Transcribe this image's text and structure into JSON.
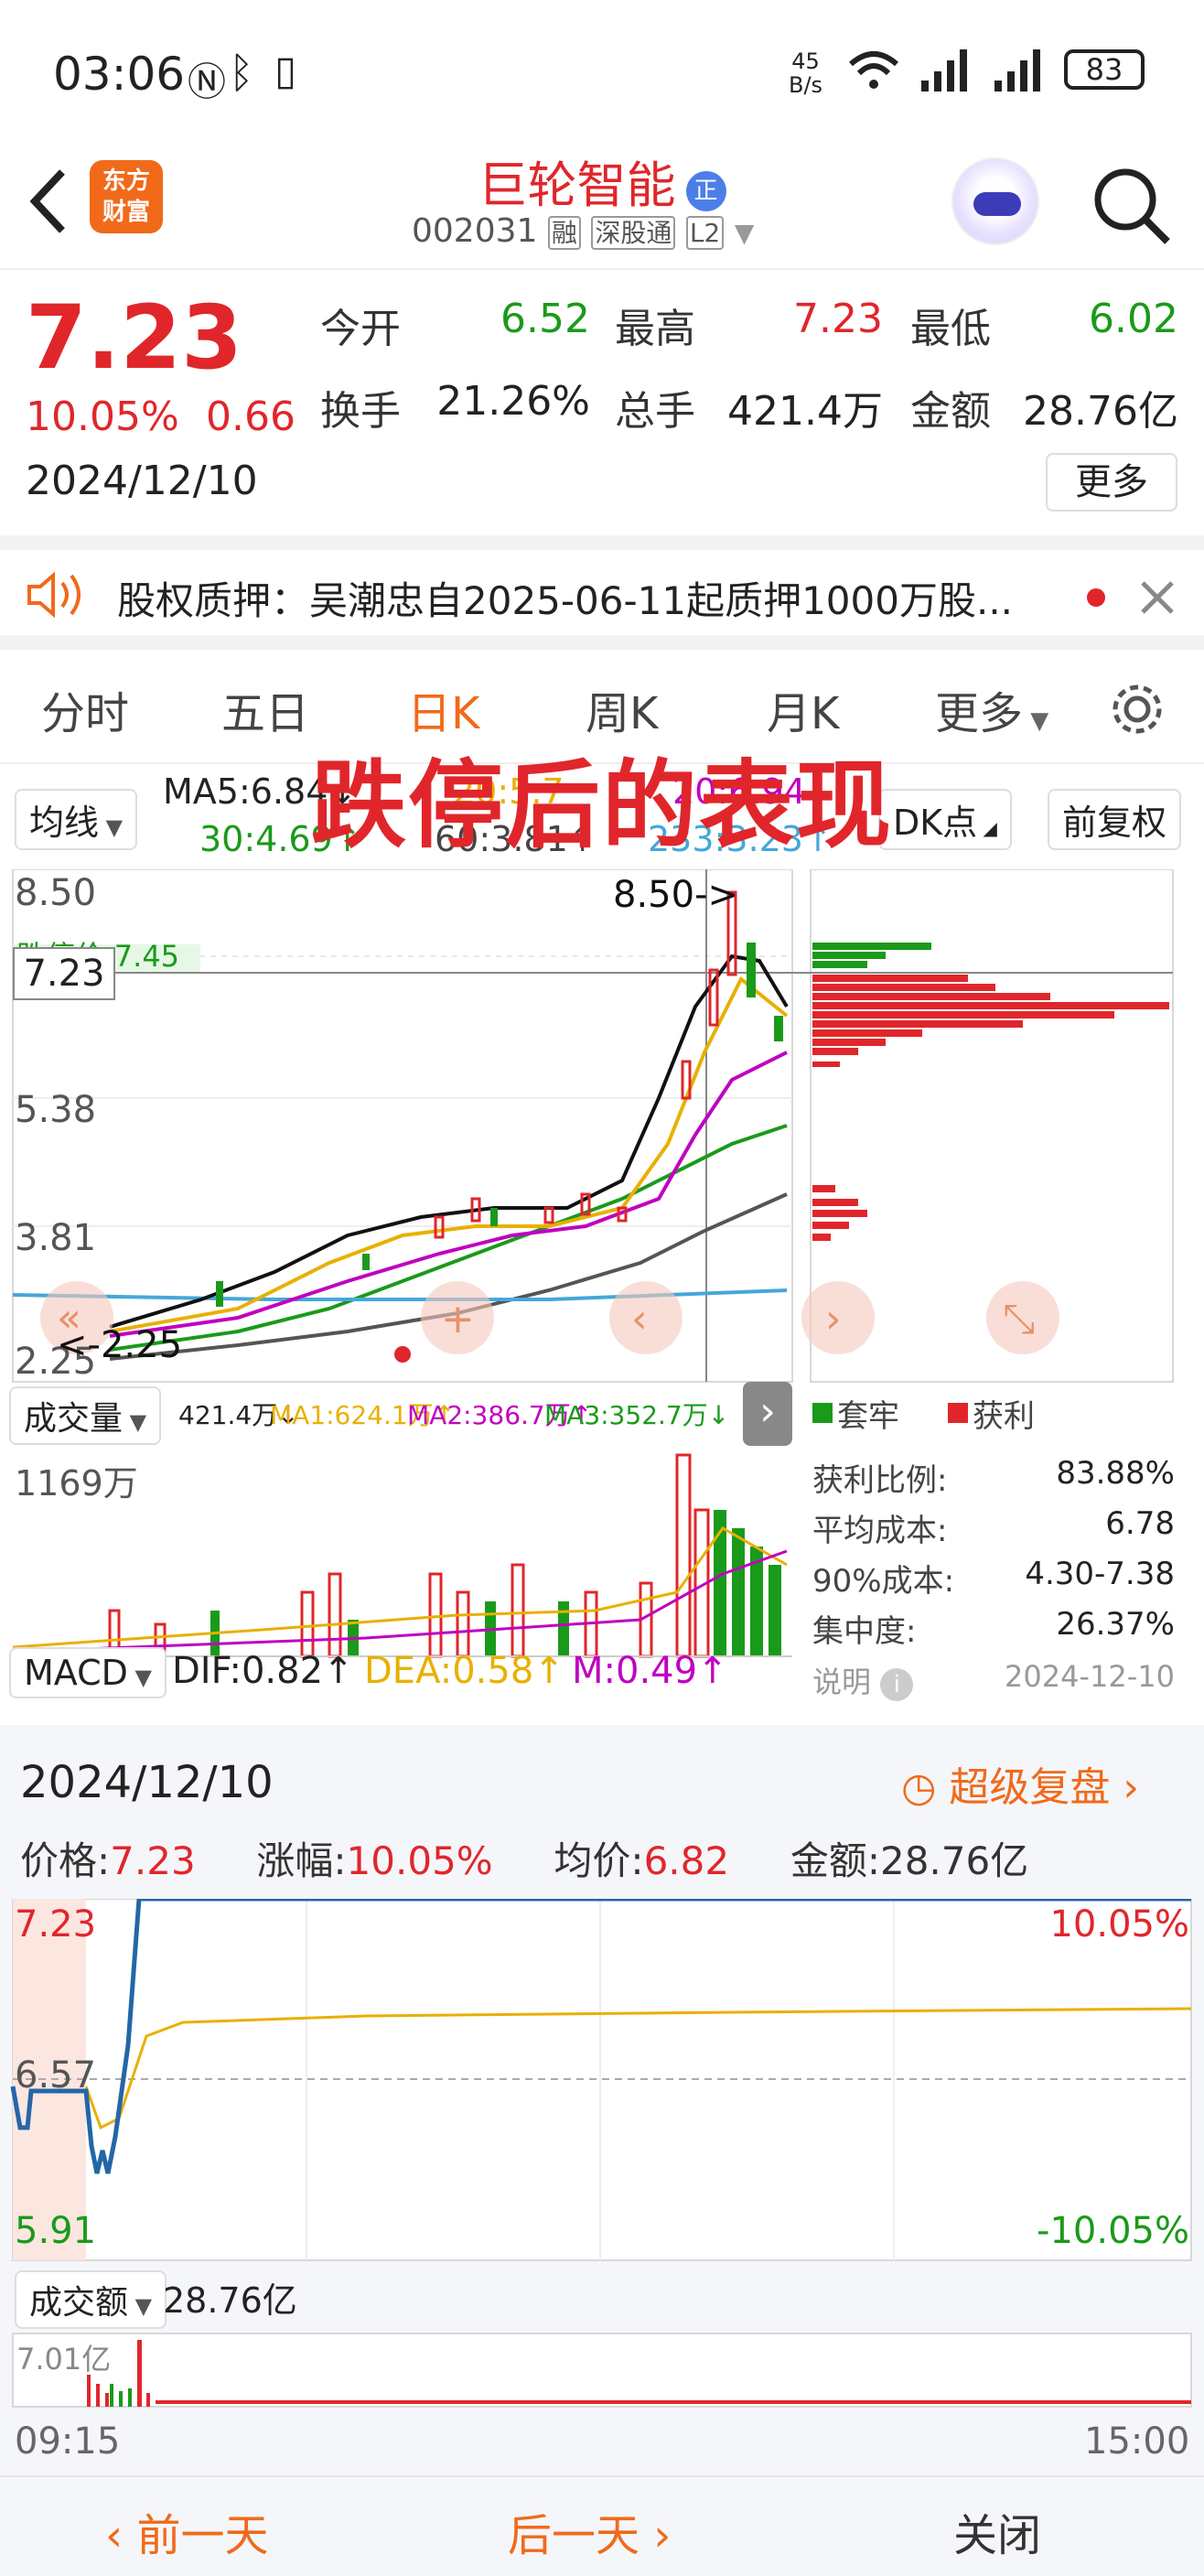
{
  "status_bar": {
    "time": "03:06",
    "speed": "45\nB/s",
    "battery": "83"
  },
  "header": {
    "brand": "东方\n财富",
    "title": "巨轮智能",
    "badge": "正",
    "code": "002031",
    "tags": [
      "融",
      "深股通",
      "L2"
    ]
  },
  "quote": {
    "price": "7.23",
    "change_pct": "10.05%",
    "change": "0.66",
    "date": "2024/12/10",
    "open_label": "今开",
    "open": "6.52",
    "high_label": "最高",
    "high": "7.23",
    "low_label": "最低",
    "low": "6.02",
    "turnover_label": "换手",
    "turnover": "21.26%",
    "vol_label": "总手",
    "vol": "421.4万",
    "amount_label": "金额",
    "amount": "28.76亿",
    "more": "更多"
  },
  "notice": {
    "text": "股权质押：吴潮忠自2025-06-11起质押1000万股..."
  },
  "tabs": [
    "分时",
    "五日",
    "日K",
    "周K",
    "月K",
    "更多"
  ],
  "kline": {
    "overlay_title": "跌停后的表现",
    "ma_select": "均线",
    "ma5": "MA5:6.84↓",
    "ma30": "30:4.69↑",
    "ma60": "60:3.81↑",
    "ma233": "233:3.23↑",
    "ma_mid": "20:5.7",
    "ma_right": "20:6.94",
    "dk": "DK点",
    "fq": "前复权",
    "y_top": "8.50",
    "y_mid1": "5.38",
    "y_mid2": "3.81",
    "y_bot": "2.25",
    "cursor_price": "7.23",
    "limit_label": "跌停价:7.45",
    "peak": "8.50->",
    "low_mark": "<-2.25",
    "vol_select": "成交量",
    "vol_now": "421.4万↓",
    "vol_ma1": "MA1:624.1万↑",
    "vol_ma2": "MA2:386.7万↑",
    "vol_ma3": "MA3:352.7万↓",
    "vol_top": "1169万",
    "macd_select": "MACD",
    "dif": "DIF:0.82↑",
    "dea": "DEA:0.58↑",
    "m": "M:0.49↑"
  },
  "chips": {
    "legend_trap": "套牢",
    "legend_profit": "获利",
    "rows": [
      {
        "label": "获利比例:",
        "value": "83.88%"
      },
      {
        "label": "平均成本:",
        "value": "6.78"
      },
      {
        "label": "90%成本:",
        "value": "4.30-7.38"
      },
      {
        "label": "集中度:",
        "value": "26.37%"
      }
    ],
    "note": "说明",
    "date": "2024-12-10"
  },
  "intraday": {
    "date": "2024/12/10",
    "replay": "超级复盘",
    "price_label": "价格:",
    "price": "7.23",
    "chg_label": "涨幅:",
    "chg": "10.05%",
    "avg_label": "均价:",
    "avg": "6.82",
    "amt_label": "金额:",
    "amt": "28.76亿",
    "y_top": "7.23",
    "y_mid": "6.57",
    "y_bot": "5.91",
    "pct_top": "10.05%",
    "pct_bot": "-10.05%",
    "amt_select": "成交额",
    "amt_total": "28.76亿",
    "amt_max": "7.01亿",
    "t_start": "09:15",
    "t_end": "15:00"
  },
  "bottom": {
    "prev": "前一天",
    "next": "后一天",
    "close": "关闭"
  }
}
